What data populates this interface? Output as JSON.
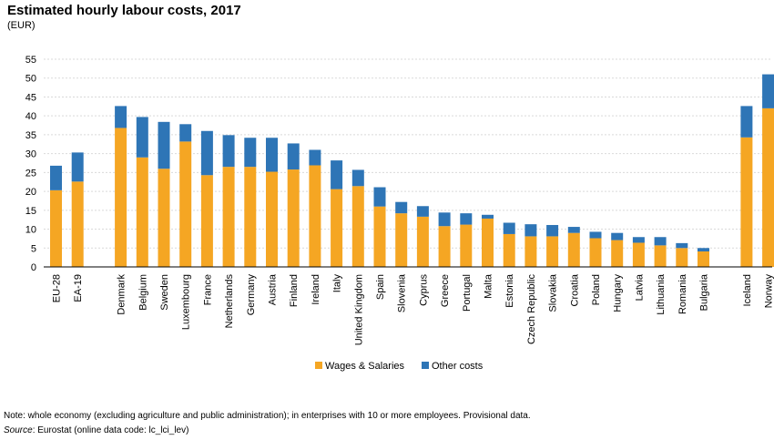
{
  "header": {
    "title": "Estimated hourly labour costs, 2017",
    "unit": "(EUR)"
  },
  "footer": {
    "note": "Note: whole economy (excluding agriculture and public administration); in enterprises with 10 or more employees. Provisional data.",
    "source_label": "Source",
    "source_text": ": Eurostat (online data code: lc_lci_lev)"
  },
  "colors": {
    "wages": "#f5a623",
    "other": "#2e75b6",
    "grid": "#d9d9d9"
  },
  "chart_data": {
    "type": "bar",
    "stacked": true,
    "categories": [
      "EU-28",
      "EA-19",
      "Denmark",
      "Belgium",
      "Sweden",
      "Luxembourg",
      "France",
      "Netherlands",
      "Germany",
      "Austria",
      "Finland",
      "Ireland",
      "Italy",
      "United Kingdom",
      "Spain",
      "Slovenia",
      "Cyprus",
      "Greece",
      "Portugal",
      "Malta",
      "Estonia",
      "Czech Republic",
      "Slovakia",
      "Croatia",
      "Poland",
      "Hungary",
      "Latvia",
      "Lithuania",
      "Romania",
      "Bulgaria",
      "Iceland",
      "Norway"
    ],
    "groups": [
      [
        0,
        1
      ],
      [
        2,
        29
      ],
      [
        30,
        31
      ]
    ],
    "series": [
      {
        "name": "Wages & Salaries",
        "values": [
          20.3,
          22.6,
          36.8,
          29.0,
          26.0,
          33.2,
          24.3,
          26.5,
          26.5,
          25.2,
          25.8,
          26.9,
          20.6,
          21.4,
          16.0,
          14.2,
          13.3,
          10.8,
          11.2,
          12.8,
          8.7,
          8.1,
          8.1,
          9.0,
          7.6,
          7.1,
          6.4,
          5.7,
          5.0,
          4.1,
          34.3,
          42.0
        ]
      },
      {
        "name": "Other costs",
        "values": [
          6.5,
          7.7,
          5.8,
          10.7,
          12.4,
          4.6,
          11.7,
          8.4,
          7.7,
          9.0,
          6.9,
          4.1,
          7.6,
          4.3,
          5.1,
          3.0,
          2.8,
          3.6,
          3.0,
          1.0,
          3.0,
          3.2,
          3.0,
          1.6,
          1.7,
          1.9,
          1.5,
          2.2,
          1.3,
          0.9,
          8.3,
          9.0
        ]
      }
    ],
    "ylim": [
      0,
      55
    ],
    "yticks": [
      0,
      5,
      10,
      15,
      20,
      25,
      30,
      35,
      40,
      45,
      50,
      55
    ],
    "grid": true,
    "legend_position": "bottom"
  }
}
